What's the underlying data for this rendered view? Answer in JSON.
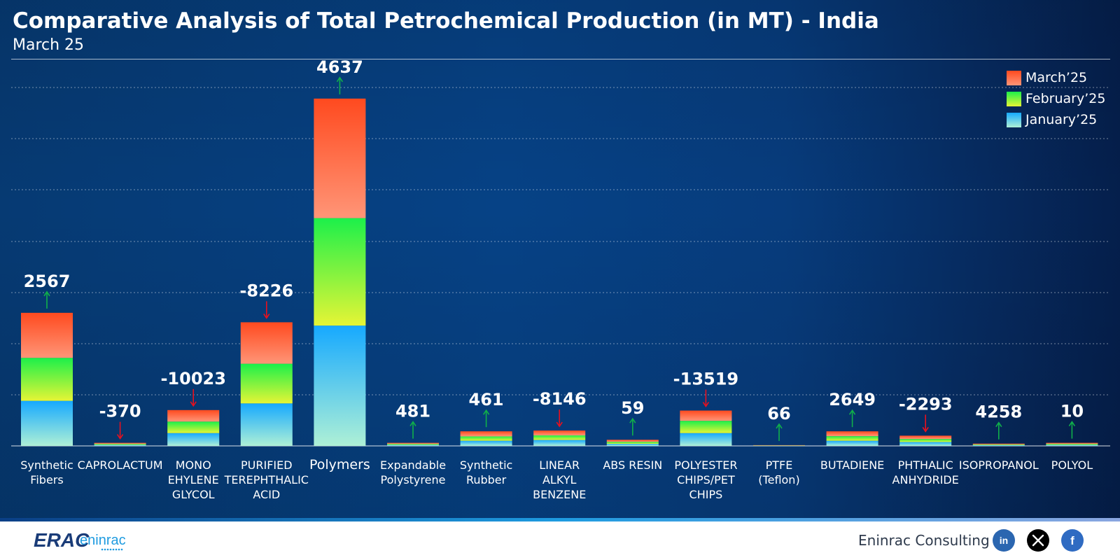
{
  "header": {
    "title": "Comparative Analysis of Total Petrochemical Production (in MT) - India",
    "subtitle": "March 25"
  },
  "footer": {
    "brand": "Eninrac Consulting",
    "logo_text": "ERAC eninrac",
    "social_icons": [
      "linkedin-icon",
      "x-icon",
      "facebook-icon"
    ]
  },
  "colors": {
    "march": "#ff5a2a",
    "february": "#2cf23e",
    "january": "#1aa8ff",
    "up_arrow": "#10b04a",
    "down_arrow": "#e8101e"
  },
  "chart_data": {
    "type": "bar",
    "stacked": true,
    "title": "Comparative Analysis of Total Petrochemical Production (in MT) - India",
    "subtitle": "March 25",
    "legend_position": "top-right",
    "grid": true,
    "categories": [
      "Synthetic Fibers",
      "CAPROLACTUM",
      "MONO EHYLENE GLYCOL",
      "PURIFIED TEREPHTHALIC ACID",
      "Polymers",
      "Expandable Polystyrene",
      "Synthetic Rubber",
      "LINEAR ALKYL BENZENE",
      "ABS RESIN",
      "POLYESTER CHIPS/PET CHIPS",
      "PTFE (Teflon)",
      "BUTADIENE",
      "PHTHALIC ANHYDRIDE",
      "ISOPROPANOL",
      "POLYOL"
    ],
    "category_lines": [
      [
        "Synthetic",
        "Fibers"
      ],
      [
        "CAPROLACTUM"
      ],
      [
        "MONO",
        "EHYLENE",
        "GLYCOL"
      ],
      [
        "PURIFIED",
        "TEREPHTHALIC",
        "ACID"
      ],
      [
        "Polymers"
      ],
      [
        "Expandable",
        "Polystyrene"
      ],
      [
        "Synthetic",
        "Rubber"
      ],
      [
        "LINEAR",
        "ALKYL",
        "BENZENE"
      ],
      [
        "ABS RESIN"
      ],
      [
        "POLYESTER",
        "CHIPS/PET",
        "CHIPS"
      ],
      [
        "PTFE",
        "(Teflon)"
      ],
      [
        "BUTADIENE"
      ],
      [
        "PHTHALIC",
        "ANHYDRIDE"
      ],
      [
        "ISOPROPANOL"
      ],
      [
        "POLYOL"
      ]
    ],
    "series": [
      {
        "name": "January'25",
        "values": [
          176000,
          4000,
          50000,
          166000,
          470000,
          4000,
          20000,
          23000,
          8000,
          50000,
          1000,
          20000,
          15000,
          3000,
          4000
        ]
      },
      {
        "name": "February'25",
        "values": [
          168000,
          4000,
          45000,
          155000,
          420000,
          4000,
          17000,
          18000,
          8000,
          48000,
          1000,
          18000,
          12000,
          3000,
          4000
        ]
      },
      {
        "name": "March'25",
        "values": [
          176000,
          4000,
          45000,
          162000,
          467000,
          4000,
          20000,
          19000,
          8000,
          40000,
          1000,
          19000,
          13000,
          3000,
          4000
        ]
      }
    ],
    "change_labels": [
      "2567",
      "-370",
      "-10023",
      "-8226",
      "4637",
      "481",
      "461",
      "-8146",
      "59",
      "-13519",
      "66",
      "2649",
      "-2293",
      "4258",
      "10"
    ],
    "change_direction": [
      "up",
      "down",
      "down",
      "down",
      "up",
      "up",
      "up",
      "down",
      "up",
      "down",
      "up",
      "up",
      "down",
      "up",
      "up"
    ],
    "ylim": [
      0,
      1600000
    ],
    "yticks_hidden": true
  }
}
